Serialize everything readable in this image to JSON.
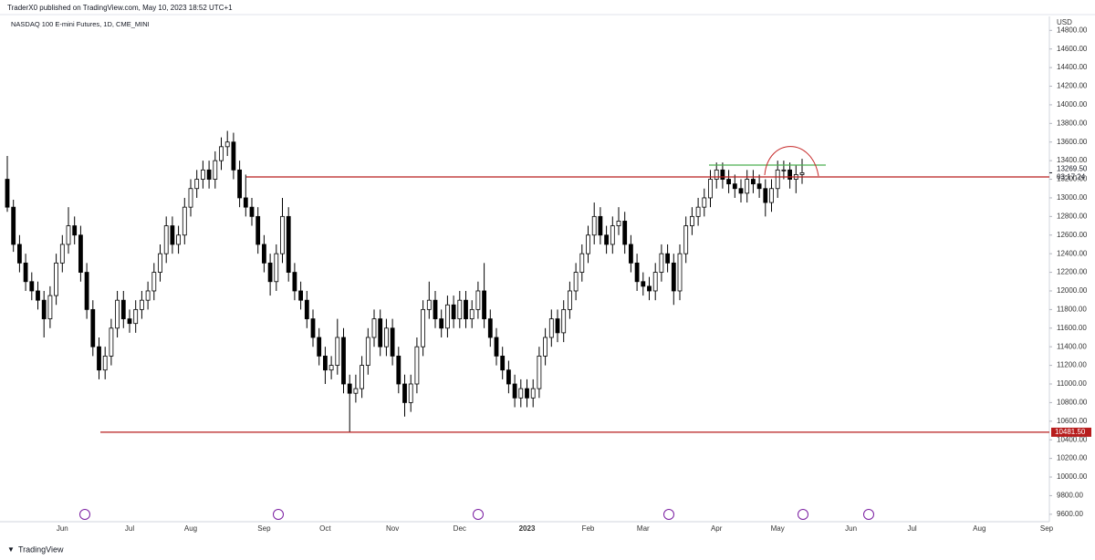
{
  "chart_data": {
    "type": "candlestick",
    "publisher": "TraderX0 published on TradingView.com, May 10, 2023 18:52 UTC+1",
    "title": "NASDAQ 100 E-mini Futures, 1D, CME_MINI",
    "currency": "USD",
    "brand": "TradingView",
    "categories": [
      null,
      null,
      null,
      null,
      null,
      null,
      null,
      null,
      null,
      "Jun",
      null,
      null,
      null,
      null,
      null,
      null,
      null,
      null,
      null,
      null,
      "Jul",
      null,
      null,
      null,
      null,
      null,
      null,
      null,
      null,
      null,
      "Aug",
      null,
      null,
      null,
      null,
      null,
      null,
      null,
      null,
      null,
      null,
      null,
      "Sep",
      null,
      null,
      null,
      null,
      null,
      null,
      null,
      null,
      null,
      "Oct",
      null,
      null,
      null,
      null,
      null,
      null,
      null,
      null,
      null,
      null,
      "Nov",
      null,
      null,
      null,
      null,
      null,
      null,
      null,
      null,
      null,
      null,
      "Dec",
      null,
      null,
      null,
      null,
      null,
      null,
      null,
      null,
      null,
      null,
      "2023",
      null,
      null,
      null,
      null,
      null,
      null,
      null,
      null,
      null,
      "Feb",
      null,
      null,
      null,
      null,
      null,
      null,
      null,
      null,
      "Mar",
      null,
      null,
      null,
      null,
      null,
      null,
      null,
      null,
      null,
      null,
      null,
      "Apr",
      null,
      null,
      null,
      null,
      null,
      null,
      null,
      null,
      null,
      "May",
      null,
      null,
      null,
      null,
      null,
      null,
      null,
      null,
      null,
      null,
      null,
      "Jun",
      null,
      null,
      null,
      null,
      null,
      null,
      null,
      null,
      null,
      "Jul",
      null,
      null,
      null,
      null,
      null,
      null,
      null,
      null,
      null,
      null,
      "Aug",
      null,
      null,
      null,
      null,
      null,
      null,
      null,
      null,
      null,
      null,
      "Sep"
    ],
    "open": [
      13200,
      12900,
      12500,
      12300,
      12100,
      12000,
      11900,
      11700,
      11950,
      12300,
      12500,
      12700,
      12600,
      12200,
      11800,
      11400,
      11150,
      11300,
      11600,
      11900,
      11700,
      11650,
      11800,
      11900,
      12000,
      12200,
      12400,
      12700,
      12500,
      12600,
      12900,
      13100,
      13200,
      13300,
      13200,
      13400,
      13550,
      13600,
      13300,
      13000,
      12900,
      12800,
      12500,
      12300,
      12100,
      12400,
      12800,
      12200,
      12000,
      11900,
      11700,
      11500,
      11300,
      11150,
      11200,
      11500,
      11000,
      10900,
      10950,
      11200,
      11500,
      11700,
      11400,
      11600,
      11300,
      11000,
      10800,
      11000,
      11400,
      11800,
      11900,
      11700,
      11600,
      11850,
      11700,
      11900,
      11700,
      11800,
      12000,
      11700,
      11500,
      11300,
      11150,
      11000,
      10850,
      10950,
      10850,
      10950,
      11300,
      11500,
      11700,
      11550,
      11800,
      12000,
      12200,
      12400,
      12600,
      12800,
      12600,
      12500,
      12700,
      12750,
      12500,
      12300,
      12100,
      12050,
      12000,
      12200,
      12400,
      12300,
      12000,
      12400,
      12700,
      12800,
      12900,
      13000,
      13200,
      13300,
      13200,
      13150,
      13100,
      13050,
      13200,
      13150,
      13100,
      12950,
      13100,
      13300,
      13300,
      13200,
      13250,
      null,
      null,
      null,
      null,
      null,
      null,
      null,
      null,
      null,
      null,
      null,
      null,
      null,
      null,
      null,
      null,
      null,
      null,
      null,
      null,
      null,
      null,
      null,
      null,
      null,
      null,
      null,
      null,
      null,
      null,
      null,
      null,
      null,
      null,
      null,
      null,
      null,
      null,
      null,
      null
    ],
    "high": [
      13450,
      12980,
      12600,
      12400,
      12200,
      12100,
      12000,
      12050,
      12400,
      12600,
      12900,
      12800,
      12700,
      12300,
      11900,
      11500,
      11400,
      11700,
      12000,
      12000,
      11800,
      11900,
      12000,
      12100,
      12300,
      12500,
      12800,
      12800,
      12700,
      13000,
      13200,
      13300,
      13400,
      13400,
      13500,
      13650,
      13720,
      13700,
      13400,
      13250,
      13000,
      12900,
      12600,
      12400,
      12500,
      13000,
      12900,
      12300,
      12100,
      12000,
      11800,
      11600,
      11400,
      11300,
      11700,
      11600,
      11100,
      11100,
      11300,
      11600,
      11800,
      11800,
      11700,
      11700,
      11400,
      11100,
      11100,
      11500,
      11900,
      12100,
      12000,
      11800,
      11950,
      11950,
      12000,
      12000,
      11900,
      12100,
      12300,
      11800,
      11600,
      11400,
      11250,
      11100,
      11050,
      11050,
      11050,
      11400,
      11600,
      11800,
      11800,
      11900,
      12100,
      12300,
      12500,
      12700,
      12950,
      12900,
      12700,
      12800,
      12900,
      12850,
      12600,
      12400,
      12200,
      12150,
      12300,
      12500,
      12500,
      12400,
      12500,
      12800,
      12900,
      13000,
      13100,
      13300,
      13380,
      13380,
      13300,
      13250,
      13200,
      13300,
      13300,
      13250,
      13200,
      13200,
      13400,
      13400,
      13380,
      13350,
      13420,
      null,
      null,
      null,
      null,
      null,
      null,
      null,
      null,
      null,
      null,
      null,
      null,
      null,
      null,
      null,
      null,
      null,
      null,
      null,
      null,
      null,
      null,
      null,
      null,
      null,
      null,
      null,
      null,
      null,
      null,
      null,
      null,
      null,
      null,
      null,
      null,
      null,
      null,
      null,
      null
    ],
    "low": [
      12850,
      12420,
      12200,
      12000,
      11900,
      11800,
      11500,
      11600,
      11850,
      12200,
      12400,
      12500,
      12100,
      11700,
      11300,
      11050,
      11050,
      11200,
      11500,
      11600,
      11550,
      11550,
      11700,
      11800,
      11900,
      12100,
      12300,
      12400,
      12400,
      12500,
      12800,
      13000,
      13100,
      13100,
      13100,
      13300,
      13450,
      13200,
      12900,
      12800,
      12700,
      12400,
      12200,
      11950,
      12000,
      12300,
      12100,
      11900,
      11800,
      11600,
      11400,
      11200,
      11000,
      11050,
      11100,
      10900,
      10480,
      10800,
      10850,
      11100,
      11400,
      11300,
      11300,
      11200,
      10900,
      10650,
      10700,
      10900,
      11300,
      11700,
      11600,
      11500,
      11500,
      11600,
      11600,
      11600,
      11600,
      11700,
      11600,
      11400,
      11200,
      11050,
      10900,
      10750,
      10750,
      10750,
      10750,
      10850,
      11200,
      11400,
      11450,
      11450,
      11700,
      11900,
      12100,
      12300,
      12500,
      12500,
      12400,
      12400,
      12600,
      12400,
      12200,
      12000,
      11950,
      11900,
      11900,
      12100,
      12200,
      11850,
      11900,
      12300,
      12600,
      12700,
      12800,
      12900,
      13100,
      13100,
      13050,
      13000,
      12950,
      12950,
      13050,
      13000,
      12800,
      12850,
      13000,
      13200,
      13100,
      13050,
      13150,
      null,
      null,
      null,
      null,
      null,
      null,
      null,
      null,
      null,
      null,
      null,
      null,
      null,
      null,
      null,
      null,
      null,
      null,
      null,
      null,
      null,
      null,
      null,
      null,
      null,
      null,
      null,
      null,
      null,
      null,
      null,
      null,
      null,
      null,
      null,
      null,
      null,
      null,
      null,
      null
    ],
    "close": [
      12900,
      12500,
      12300,
      12100,
      12000,
      11900,
      11700,
      11950,
      12300,
      12500,
      12700,
      12600,
      12200,
      11800,
      11400,
      11150,
      11300,
      11600,
      11900,
      11700,
      11650,
      11800,
      11900,
      12000,
      12200,
      12400,
      12700,
      12500,
      12600,
      12900,
      13100,
      13200,
      13300,
      13200,
      13400,
      13550,
      13600,
      13300,
      13000,
      12900,
      12800,
      12500,
      12300,
      12100,
      12400,
      12800,
      12200,
      12000,
      11900,
      11700,
      11500,
      11300,
      11150,
      11200,
      11500,
      11000,
      10900,
      10950,
      11200,
      11500,
      11700,
      11400,
      11600,
      11300,
      11000,
      10800,
      11000,
      11400,
      11800,
      11900,
      11700,
      11600,
      11850,
      11700,
      11900,
      11700,
      11800,
      12000,
      11700,
      11500,
      11300,
      11150,
      11000,
      10850,
      10950,
      10850,
      10950,
      11300,
      11500,
      11700,
      11550,
      11800,
      12000,
      12200,
      12400,
      12600,
      12800,
      12600,
      12500,
      12700,
      12750,
      12500,
      12300,
      12100,
      12050,
      12000,
      12200,
      12400,
      12300,
      12000,
      12400,
      12700,
      12800,
      12900,
      13000,
      13200,
      13300,
      13200,
      13150,
      13100,
      13050,
      13200,
      13150,
      13100,
      12950,
      13100,
      13300,
      13300,
      13200,
      13250,
      13269.5,
      null,
      null,
      null,
      null,
      null,
      null,
      null,
      null,
      null,
      null,
      null,
      null,
      null,
      null,
      null,
      null,
      null,
      null,
      null,
      null,
      null,
      null,
      null,
      null,
      null,
      null,
      null,
      null,
      null,
      null,
      null,
      null,
      null,
      null,
      null,
      null,
      null,
      null,
      null,
      null
    ],
    "up_color": "#ffffff",
    "down_color": "#000000",
    "wick_color": "#000000",
    "ylim": [
      9520,
      14950
    ],
    "yticks": [
      {
        "value": 9600,
        "label": "9600.00"
      },
      {
        "value": 9800,
        "label": "9800.00"
      },
      {
        "value": 10000,
        "label": "10000.00"
      },
      {
        "value": 10200,
        "label": "10200.00"
      },
      {
        "value": 10400,
        "label": "10400.00"
      },
      {
        "value": 10600,
        "label": "10600.00"
      },
      {
        "value": 10800,
        "label": "10800.00"
      },
      {
        "value": 11000,
        "label": "11000.00"
      },
      {
        "value": 11200,
        "label": "11200.00"
      },
      {
        "value": 11400,
        "label": "11400.00"
      },
      {
        "value": 11600,
        "label": "11600.00"
      },
      {
        "value": 11800,
        "label": "11800.00"
      },
      {
        "value": 12000,
        "label": "12000.00"
      },
      {
        "value": 12200,
        "label": "12200.00"
      },
      {
        "value": 12400,
        "label": "12400.00"
      },
      {
        "value": 12600,
        "label": "12600.00"
      },
      {
        "value": 12800,
        "label": "12800.00"
      },
      {
        "value": 13000,
        "label": "13000.00"
      },
      {
        "value": 13200,
        "label": "13200.00"
      },
      {
        "value": 13400,
        "label": "13400.00"
      },
      {
        "value": 13600,
        "label": "13600.00"
      },
      {
        "value": 13800,
        "label": "13800.00"
      },
      {
        "value": 14000,
        "label": "14000.00"
      },
      {
        "value": 14200,
        "label": "14200.00"
      },
      {
        "value": 14400,
        "label": "14400.00"
      },
      {
        "value": 14600,
        "label": "14600.00"
      },
      {
        "value": 14800,
        "label": "14800.00"
      }
    ],
    "last_price": {
      "value": 13269.5,
      "label": "13269.50",
      "countdown": "03:17:24"
    },
    "level": {
      "value": 10481.5,
      "label": "10481.50",
      "color": "#b71c1c"
    }
  }
}
